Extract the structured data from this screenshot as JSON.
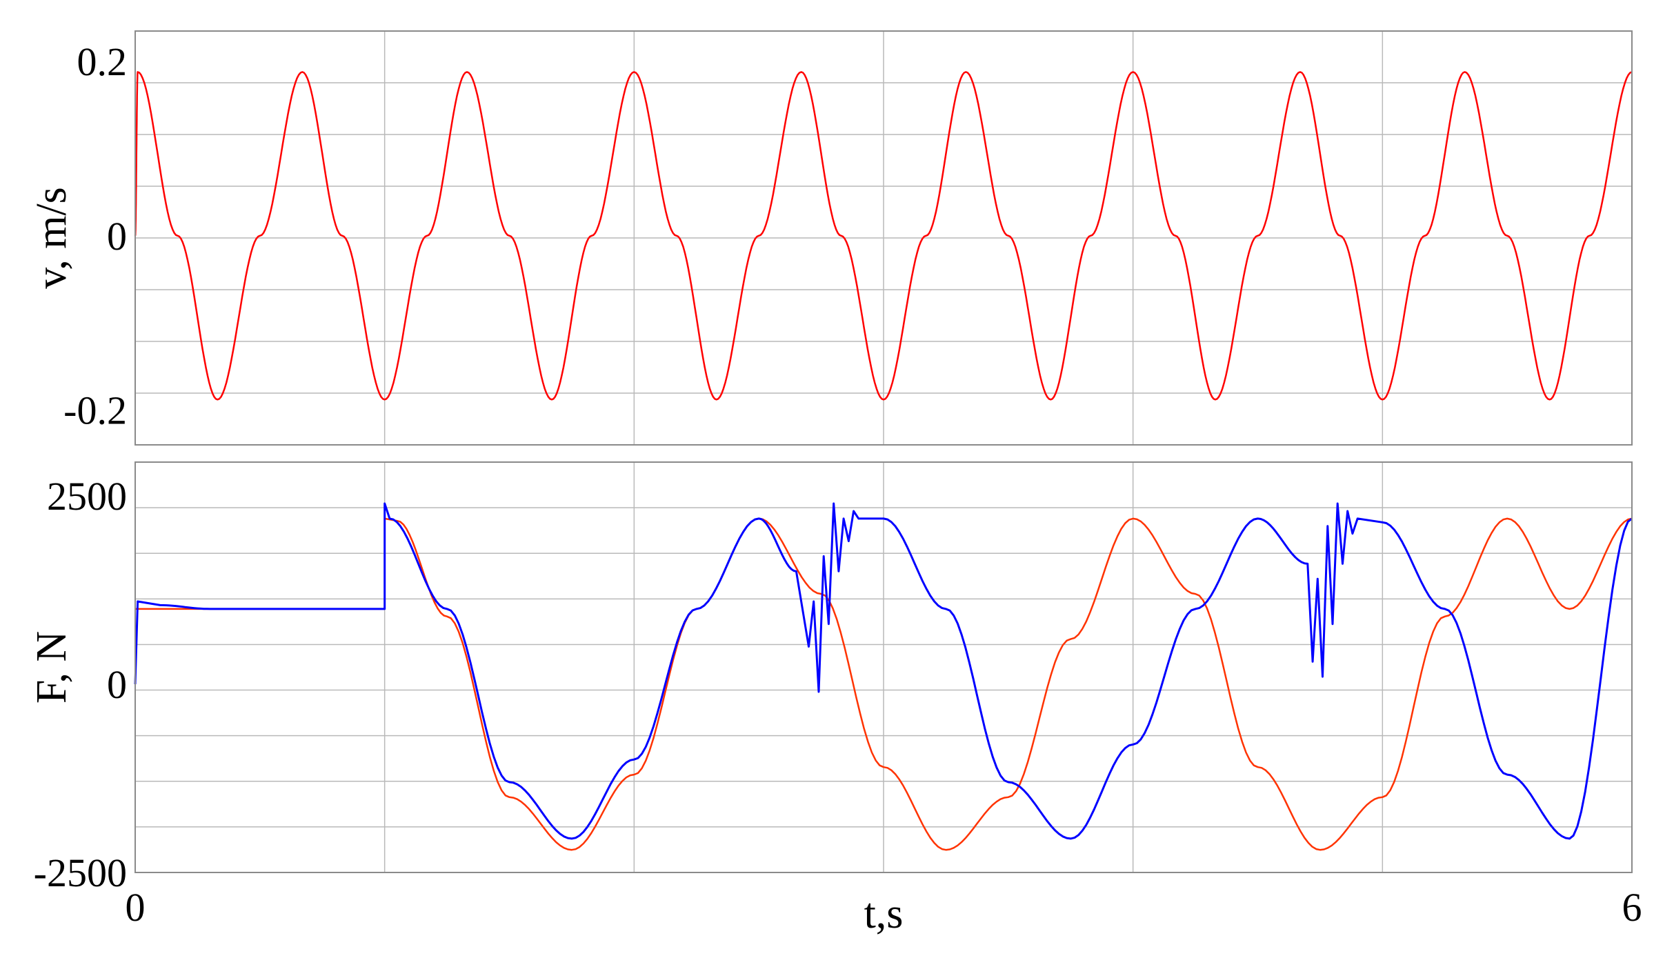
{
  "chart_data": [
    {
      "type": "line",
      "title": "",
      "xlabel": "",
      "ylabel": "v, m/s",
      "xlim": [
        0,
        6
      ],
      "ylim": [
        -0.24,
        0.235
      ],
      "yticks": [
        {
          "value": 0.2,
          "label": "0.2"
        },
        {
          "value": 0,
          "label": "0"
        },
        {
          "value": -0.2,
          "label": "-0.2"
        }
      ],
      "grid": true,
      "legend": "none",
      "series": [
        {
          "color": "#ff0000",
          "x": [
            0,
            0.01,
            0.17,
            0.33,
            0.5,
            0.67,
            0.83,
            1.0,
            1.17,
            1.33,
            1.5,
            1.67,
            1.83,
            2.0,
            2.17,
            2.33,
            2.5,
            2.67,
            2.83,
            3.0,
            3.17,
            3.33,
            3.5,
            3.67,
            3.83,
            4.0,
            4.17,
            4.33,
            4.5,
            4.67,
            4.83,
            5.0,
            5.17,
            5.33,
            5.5,
            5.67,
            5.83,
            6.0
          ],
          "y": [
            0,
            0.188,
            0,
            -0.188,
            0,
            0.188,
            0,
            -0.188,
            0,
            0.188,
            0,
            -0.188,
            0,
            0.188,
            0,
            -0.188,
            0,
            0.188,
            0,
            -0.188,
            0,
            0.188,
            0,
            -0.188,
            0,
            0.188,
            0,
            -0.188,
            0,
            0.188,
            0,
            -0.188,
            0,
            0.188,
            0,
            -0.188,
            0,
            0.188
          ]
        }
      ]
    },
    {
      "type": "line",
      "title": "",
      "xlabel": "t,s",
      "ylabel": "F, N",
      "xlim": [
        0,
        6
      ],
      "ylim": [
        -2500,
        2950
      ],
      "xticks": [
        {
          "value": 0,
          "label": "0"
        },
        {
          "value": 6,
          "label": "6"
        }
      ],
      "yticks": [
        {
          "value": 2500,
          "label": "2500"
        },
        {
          "value": 0,
          "label": "0"
        },
        {
          "value": -2500,
          "label": "-2500"
        }
      ],
      "grid": true,
      "legend": "none",
      "series": [
        {
          "color": "#ff3300",
          "x": [
            0.0,
            0.01,
            0.5,
            1.0,
            1.0,
            1.05,
            1.25,
            1.5,
            1.75,
            2.0,
            2.25,
            2.5,
            2.75,
            3.0,
            3.25,
            3.5,
            3.75,
            4.0,
            4.25,
            4.5,
            4.75,
            5.0,
            5.25,
            5.5,
            5.75,
            6.0
          ],
          "y": [
            1000,
            1000,
            1000,
            1000,
            2200,
            2170,
            900,
            -1500,
            -2200,
            -1200,
            1000,
            2200,
            1200,
            -1100,
            -2200,
            -1500,
            600,
            2200,
            1200,
            -1100,
            -2200,
            -1500,
            900,
            2200,
            1000,
            2200
          ]
        },
        {
          "color": "#0000ff",
          "x": [
            0.0,
            0.01,
            0.1,
            0.3,
            0.5,
            0.7,
            0.9,
            1.0,
            1.0,
            1.02,
            1.25,
            1.5,
            1.75,
            2.0,
            2.25,
            2.5,
            2.65,
            2.7,
            2.72,
            2.74,
            2.76,
            2.78,
            2.8,
            2.82,
            2.84,
            2.86,
            2.88,
            2.9,
            3.0,
            3.25,
            3.5,
            3.75,
            4.0,
            4.25,
            4.5,
            4.7,
            4.72,
            4.74,
            4.76,
            4.78,
            4.8,
            4.82,
            4.84,
            4.86,
            4.88,
            4.9,
            5.0,
            5.25,
            5.5,
            5.75,
            6.0
          ],
          "y": [
            0,
            1100,
            1050,
            1000,
            1000,
            1000,
            1000,
            1000,
            2400,
            2200,
            1000,
            -1300,
            -2050,
            -1000,
            1000,
            2200,
            1500,
            500,
            1100,
            -100,
            1700,
            800,
            2400,
            1500,
            2200,
            1900,
            2300,
            2200,
            2200,
            1000,
            -1300,
            -2050,
            -800,
            1000,
            2200,
            1600,
            300,
            1400,
            100,
            2100,
            800,
            2400,
            1600,
            2300,
            2000,
            2200,
            2150,
            1000,
            -1200,
            -2050,
            2200
          ]
        }
      ]
    }
  ]
}
